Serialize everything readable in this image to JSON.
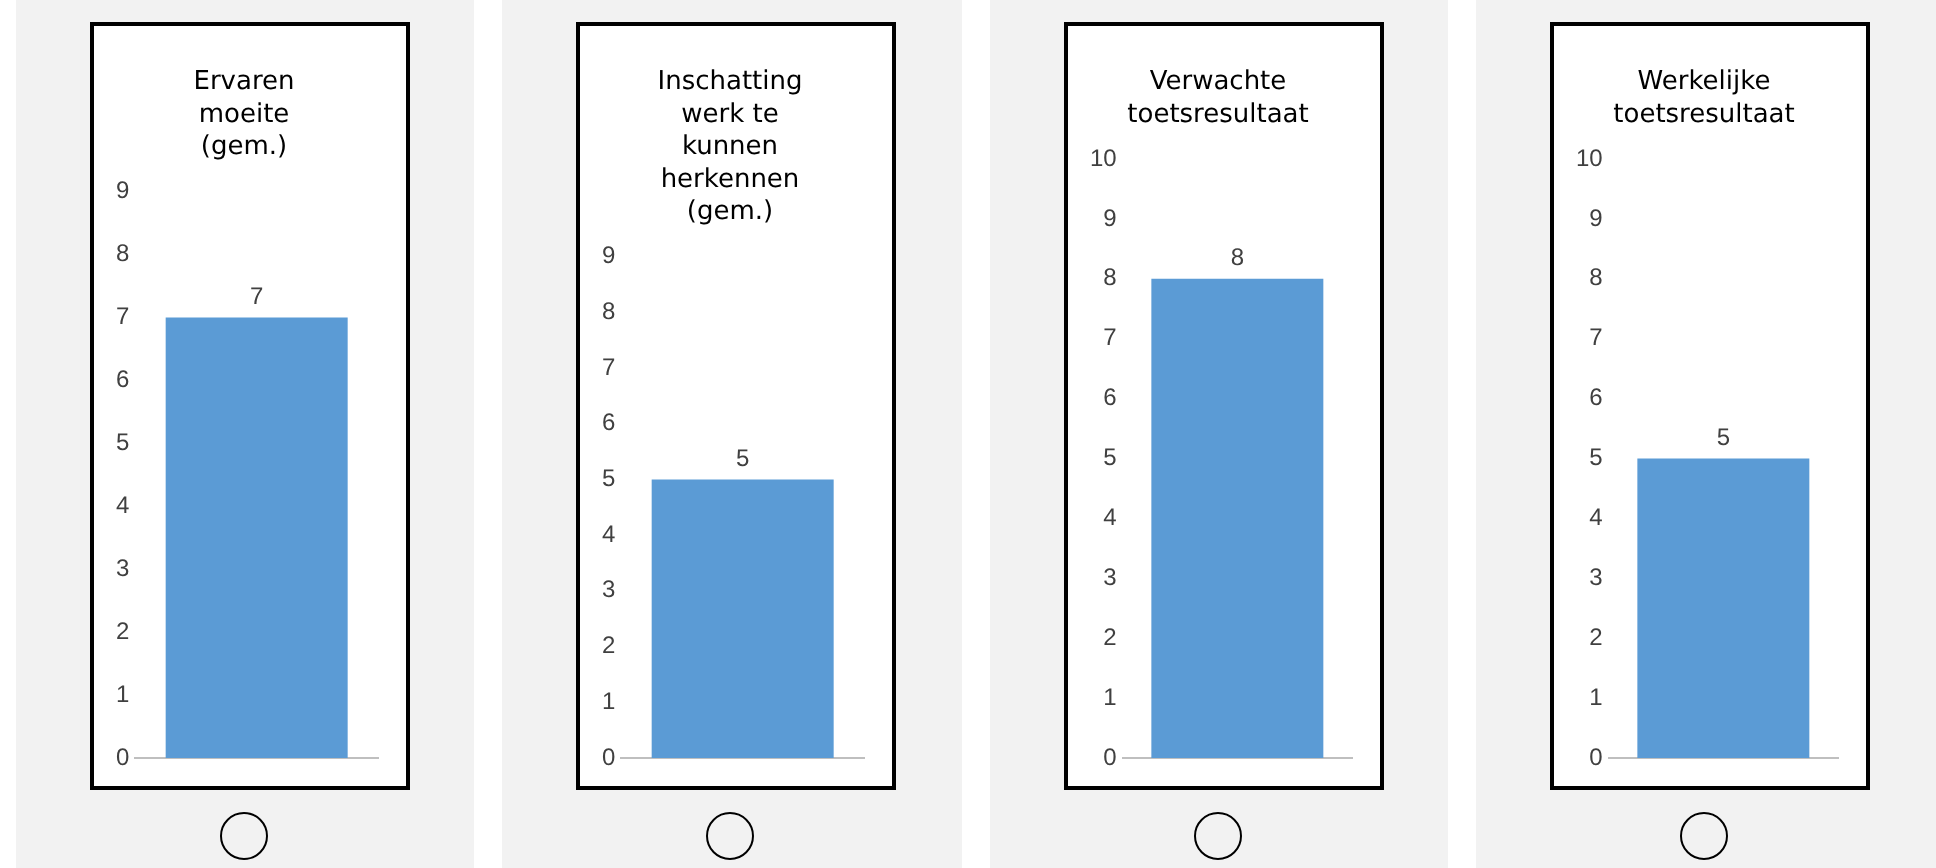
{
  "chart_data": [
    {
      "type": "bar",
      "title": "Ervaren moeite (gem.)",
      "categories": [
        null
      ],
      "values": [
        7
      ],
      "color": "#5b9bd5",
      "ylim": [
        0,
        9
      ],
      "yticks": [
        0,
        1,
        2,
        3,
        4,
        5,
        6,
        7,
        8,
        9
      ],
      "grid": false,
      "data_labels": true,
      "tick_labels": "y"
    },
    {
      "type": "bar",
      "title": "Inschatting werk te kunnen herkennen (gem.)",
      "categories": [
        null
      ],
      "values": [
        5
      ],
      "color": "#5b9bd5",
      "ylim": [
        0,
        9
      ],
      "yticks": [
        0,
        1,
        2,
        3,
        4,
        5,
        6,
        7,
        8,
        9
      ],
      "grid": false,
      "data_labels": true,
      "tick_labels": "y"
    },
    {
      "type": "bar",
      "title": "Verwachte toetsresultaat",
      "categories": [
        null
      ],
      "values": [
        8
      ],
      "color": "#5b9bd5",
      "ylim": [
        0,
        10
      ],
      "yticks": [
        0,
        1,
        2,
        3,
        4,
        5,
        6,
        7,
        8,
        9,
        10
      ],
      "grid": false,
      "data_labels": true,
      "tick_labels": "y"
    },
    {
      "type": "bar",
      "title": "Werkelijke toetsresultaat",
      "categories": [
        null
      ],
      "values": [
        5
      ],
      "color": "#5b9bd5",
      "ylim": [
        0,
        10
      ],
      "yticks": [
        0,
        1,
        2,
        3,
        4,
        5,
        6,
        7,
        8,
        9,
        10
      ],
      "grid": false,
      "data_labels": true,
      "tick_labels": "y"
    }
  ]
}
